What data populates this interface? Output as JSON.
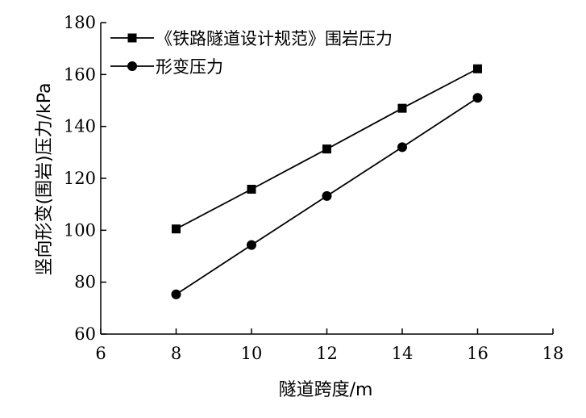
{
  "chart_data": {
    "type": "line",
    "title": "",
    "xlabel": "隧道跨度/m",
    "ylabel": "竖向形变(围岩)压力/kPa",
    "xlim": [
      6,
      18
    ],
    "ylim": [
      60,
      180
    ],
    "xticks": [
      6,
      8,
      10,
      12,
      14,
      16,
      18
    ],
    "yticks": [
      60,
      80,
      100,
      120,
      140,
      160,
      180
    ],
    "x": [
      8,
      10,
      12,
      14,
      16
    ],
    "series": [
      {
        "name": "《铁路隧道设计规范》围岩压力",
        "marker": "square",
        "values": [
          100.5,
          115.8,
          131.3,
          147.0,
          162.2
        ]
      },
      {
        "name": "形变压力",
        "marker": "circle",
        "values": [
          75.3,
          94.3,
          113.2,
          132.0,
          151.0
        ]
      }
    ],
    "grid": false,
    "legend_position": "top-left",
    "colors": {
      "line": "#000000",
      "marker": "#000000"
    }
  }
}
